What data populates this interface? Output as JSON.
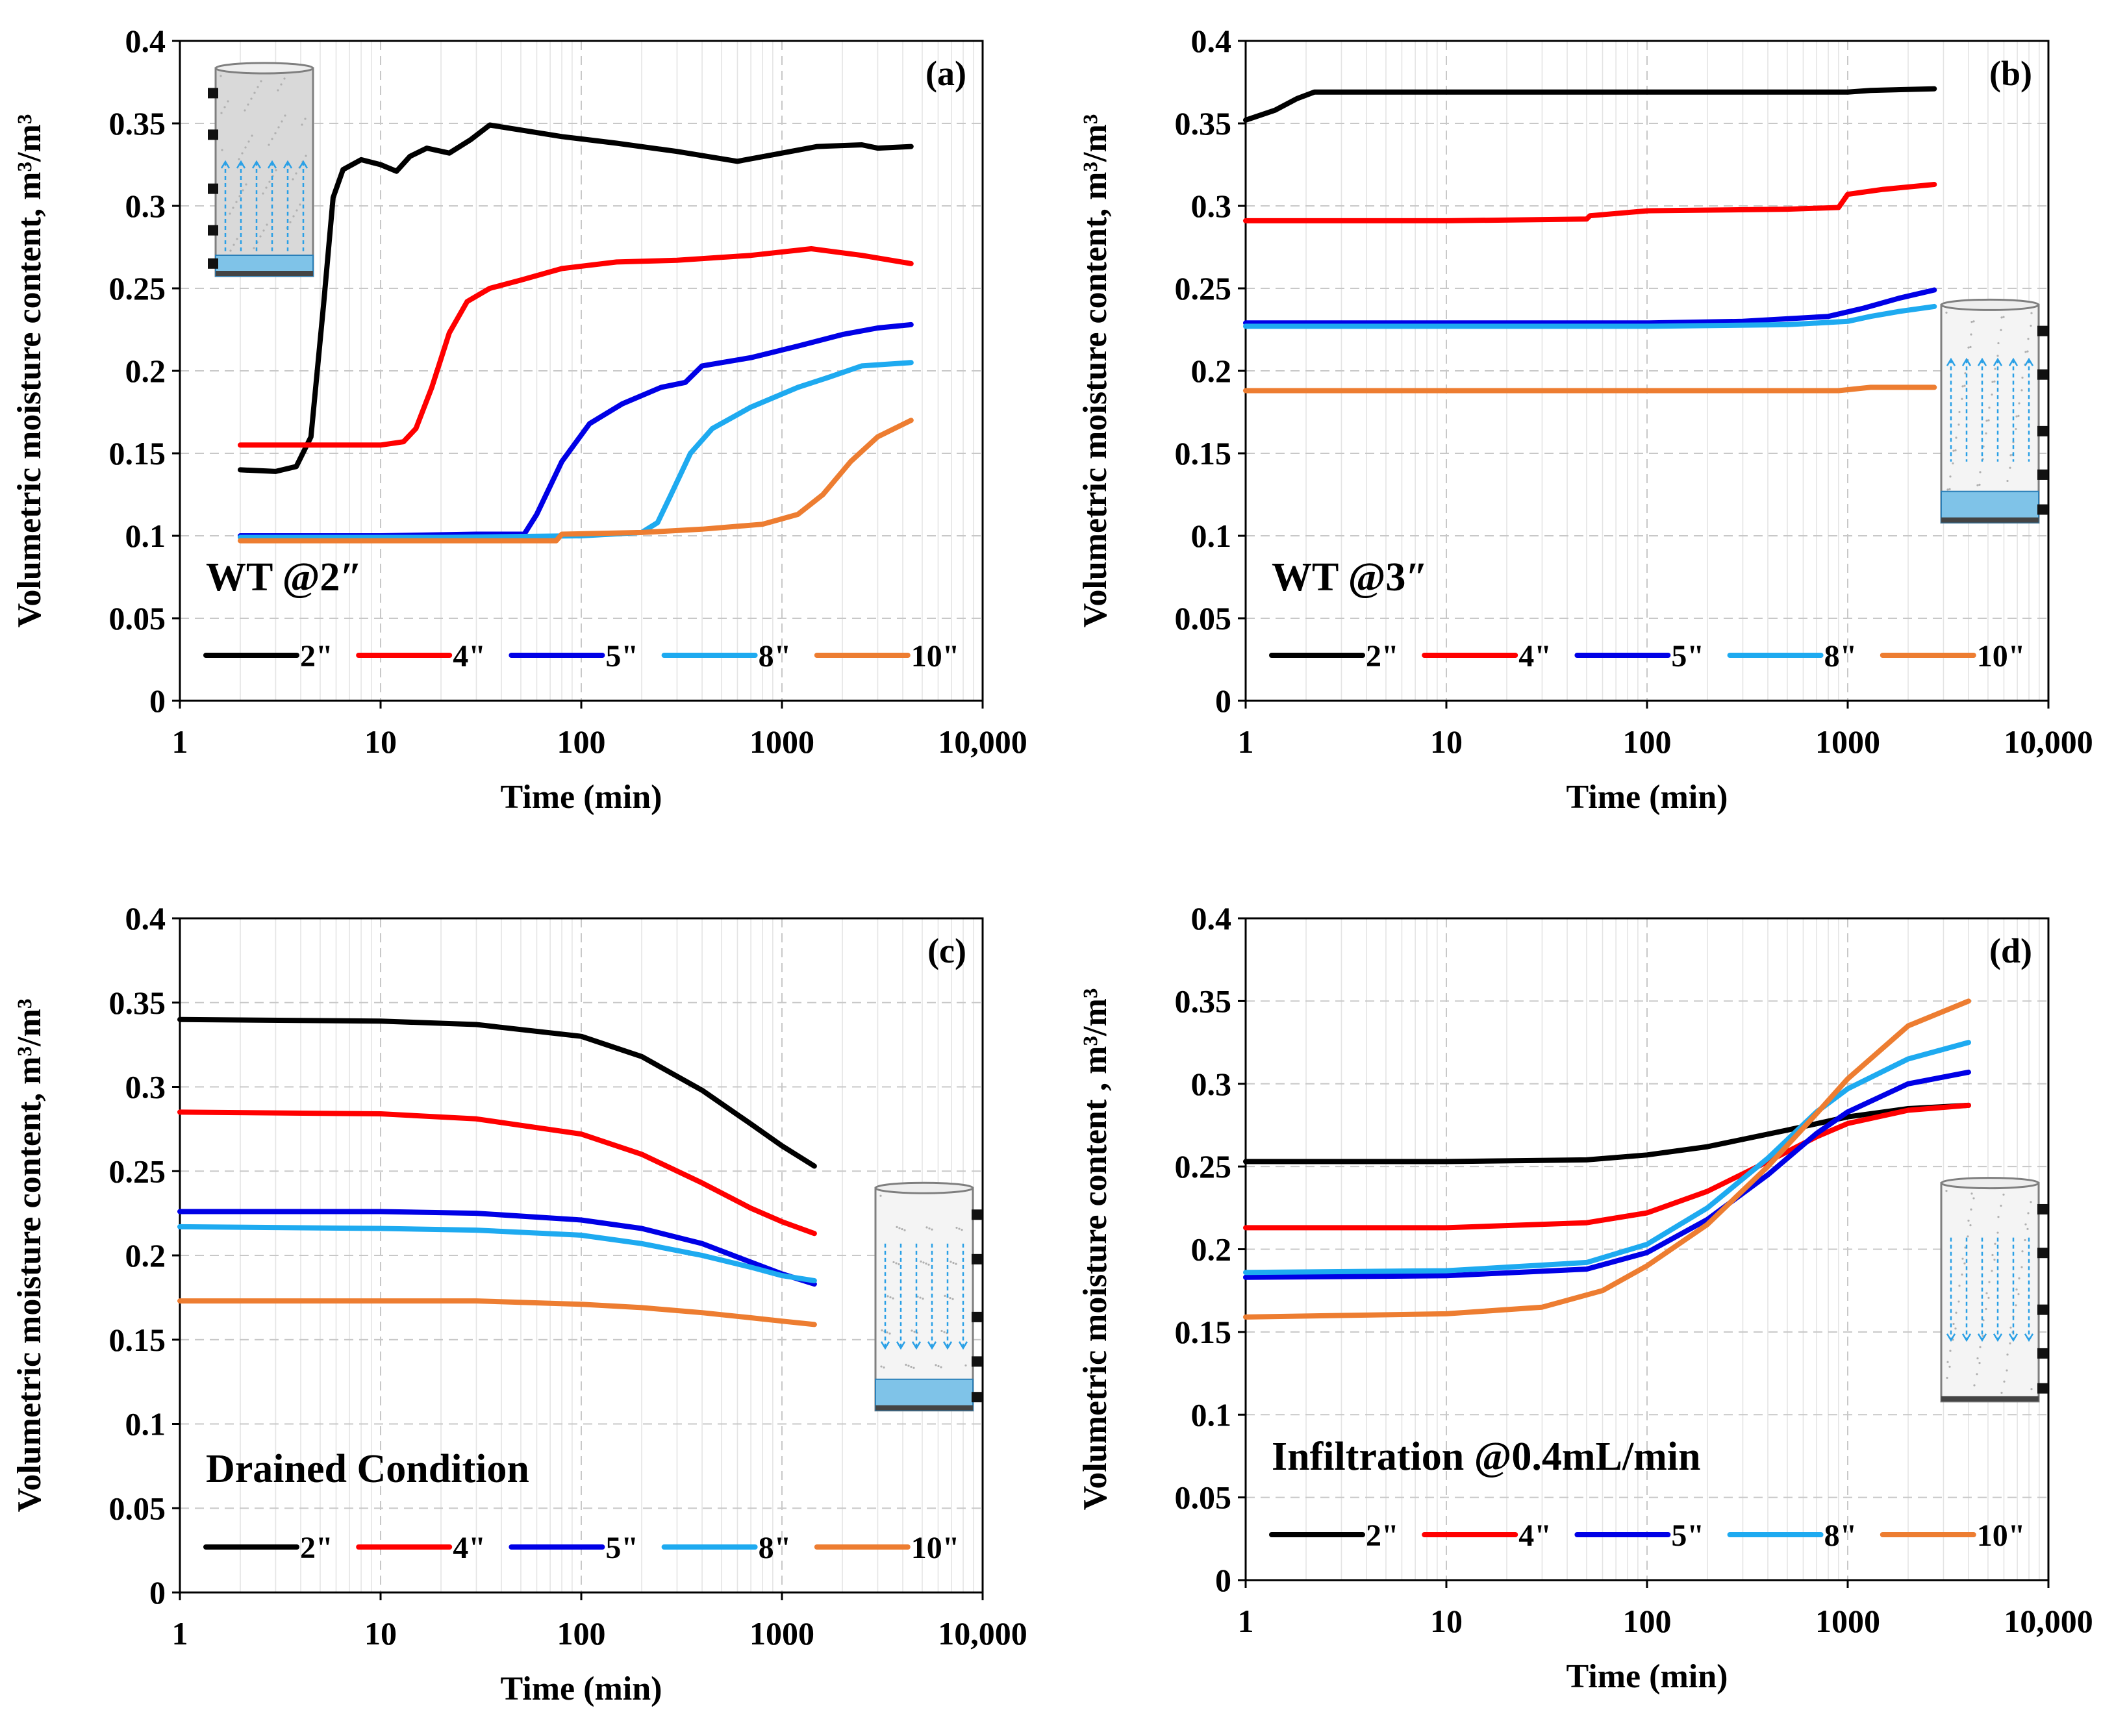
{
  "chart_data": [
    {
      "id": "a",
      "type": "line",
      "panel_label": "a",
      "annotation": "WT @2″",
      "xlabel": "Time (min)",
      "ylabel": "Volumetric moisture content, m³/m³",
      "xscale": "log",
      "xlim": [
        1,
        10000
      ],
      "ylim": [
        0,
        0.4
      ],
      "x_ticks": [
        "1",
        "10",
        "100",
        "1000",
        "10,000"
      ],
      "y_ticks": [
        "0",
        "0.05",
        "0.1",
        "0.15",
        "0.2",
        "0.25",
        "0.3",
        "0.35",
        "0.4"
      ],
      "legend_position": "bottom",
      "inset": "top-left",
      "series": [
        {
          "name": "2\"",
          "color": "#000000",
          "points": [
            [
              2,
              0.14
            ],
            [
              3,
              0.139
            ],
            [
              3.8,
              0.142
            ],
            [
              4.5,
              0.16
            ],
            [
              5.2,
              0.24
            ],
            [
              5.8,
              0.305
            ],
            [
              6.5,
              0.322
            ],
            [
              8,
              0.328
            ],
            [
              10,
              0.325
            ],
            [
              12,
              0.321
            ],
            [
              14,
              0.33
            ],
            [
              17,
              0.335
            ],
            [
              22,
              0.332
            ],
            [
              28,
              0.34
            ],
            [
              35,
              0.349
            ],
            [
              50,
              0.346
            ],
            [
              80,
              0.342
            ],
            [
              150,
              0.338
            ],
            [
              300,
              0.333
            ],
            [
              600,
              0.327
            ],
            [
              900,
              0.331
            ],
            [
              1500,
              0.336
            ],
            [
              2500,
              0.337
            ],
            [
              3000,
              0.335
            ],
            [
              4400,
              0.336
            ]
          ]
        },
        {
          "name": "4\"",
          "color": "#ff0000",
          "points": [
            [
              2,
              0.155
            ],
            [
              5,
              0.155
            ],
            [
              10,
              0.155
            ],
            [
              13,
              0.157
            ],
            [
              15,
              0.165
            ],
            [
              18,
              0.19
            ],
            [
              22,
              0.223
            ],
            [
              27,
              0.242
            ],
            [
              35,
              0.25
            ],
            [
              50,
              0.255
            ],
            [
              80,
              0.262
            ],
            [
              150,
              0.266
            ],
            [
              300,
              0.267
            ],
            [
              700,
              0.27
            ],
            [
              1400,
              0.274
            ],
            [
              2500,
              0.27
            ],
            [
              4400,
              0.265
            ]
          ]
        },
        {
          "name": "5\"",
          "color": "#0000e6",
          "points": [
            [
              2,
              0.1
            ],
            [
              10,
              0.1
            ],
            [
              30,
              0.101
            ],
            [
              52,
              0.101
            ],
            [
              60,
              0.113
            ],
            [
              80,
              0.145
            ],
            [
              110,
              0.168
            ],
            [
              160,
              0.18
            ],
            [
              250,
              0.19
            ],
            [
              330,
              0.193
            ],
            [
              400,
              0.203
            ],
            [
              700,
              0.208
            ],
            [
              1200,
              0.215
            ],
            [
              2000,
              0.222
            ],
            [
              3000,
              0.226
            ],
            [
              4400,
              0.228
            ]
          ]
        },
        {
          "name": "8\"",
          "color": "#1eaaf0",
          "points": [
            [
              2,
              0.099
            ],
            [
              20,
              0.099
            ],
            [
              100,
              0.1
            ],
            [
              200,
              0.102
            ],
            [
              240,
              0.108
            ],
            [
              280,
              0.125
            ],
            [
              350,
              0.15
            ],
            [
              450,
              0.165
            ],
            [
              700,
              0.178
            ],
            [
              1200,
              0.19
            ],
            [
              1700,
              0.196
            ],
            [
              2500,
              0.203
            ],
            [
              4400,
              0.205
            ]
          ]
        },
        {
          "name": "10\"",
          "color": "#ed7d31",
          "points": [
            [
              2,
              0.097
            ],
            [
              20,
              0.097
            ],
            [
              75,
              0.097
            ],
            [
              80,
              0.101
            ],
            [
              200,
              0.102
            ],
            [
              400,
              0.104
            ],
            [
              800,
              0.107
            ],
            [
              1200,
              0.113
            ],
            [
              1600,
              0.125
            ],
            [
              2200,
              0.145
            ],
            [
              3000,
              0.16
            ],
            [
              4400,
              0.17
            ]
          ]
        }
      ]
    },
    {
      "id": "b",
      "type": "line",
      "panel_label": "b",
      "annotation": "WT @3″",
      "xlabel": "Time (min)",
      "ylabel": "Volumetric moisture content, m³/m³",
      "xscale": "log",
      "xlim": [
        1,
        10000
      ],
      "ylim": [
        0,
        0.4
      ],
      "x_ticks": [
        "1",
        "10",
        "100",
        "1000",
        "10,000"
      ],
      "y_ticks": [
        "0",
        "0.05",
        "0.1",
        "0.15",
        "0.2",
        "0.25",
        "0.3",
        "0.35",
        "0.4"
      ],
      "legend_position": "bottom",
      "inset": "right",
      "series": [
        {
          "name": "2\"",
          "color": "#000000",
          "points": [
            [
              1,
              0.352
            ],
            [
              1.4,
              0.358
            ],
            [
              1.8,
              0.365
            ],
            [
              2.2,
              0.369
            ],
            [
              3,
              0.369
            ],
            [
              10,
              0.369
            ],
            [
              100,
              0.369
            ],
            [
              1000,
              0.369
            ],
            [
              1300,
              0.37
            ],
            [
              2700,
              0.371
            ]
          ]
        },
        {
          "name": "4\"",
          "color": "#ff0000",
          "points": [
            [
              1,
              0.291
            ],
            [
              10,
              0.291
            ],
            [
              50,
              0.292
            ],
            [
              52,
              0.294
            ],
            [
              100,
              0.297
            ],
            [
              500,
              0.298
            ],
            [
              900,
              0.299
            ],
            [
              1000,
              0.307
            ],
            [
              1500,
              0.31
            ],
            [
              2700,
              0.313
            ]
          ]
        },
        {
          "name": "5\"",
          "color": "#0000e6",
          "points": [
            [
              1,
              0.229
            ],
            [
              10,
              0.229
            ],
            [
              100,
              0.229
            ],
            [
              300,
              0.23
            ],
            [
              800,
              0.233
            ],
            [
              1200,
              0.238
            ],
            [
              1800,
              0.244
            ],
            [
              2700,
              0.249
            ]
          ]
        },
        {
          "name": "8\"",
          "color": "#1eaaf0",
          "points": [
            [
              1,
              0.227
            ],
            [
              10,
              0.227
            ],
            [
              100,
              0.227
            ],
            [
              500,
              0.228
            ],
            [
              1000,
              0.23
            ],
            [
              1300,
              0.233
            ],
            [
              1800,
              0.236
            ],
            [
              2700,
              0.239
            ]
          ]
        },
        {
          "name": "10\"",
          "color": "#ed7d31",
          "points": [
            [
              1,
              0.188
            ],
            [
              10,
              0.188
            ],
            [
              100,
              0.188
            ],
            [
              900,
              0.188
            ],
            [
              1300,
              0.19
            ],
            [
              2700,
              0.19
            ]
          ]
        }
      ]
    },
    {
      "id": "c",
      "type": "line",
      "panel_label": "c",
      "annotation": "Drained Condition",
      "xlabel": "Time (min)",
      "ylabel": "Volumetric moisture content, m³/m³",
      "xscale": "log",
      "xlim": [
        1,
        10000
      ],
      "ylim": [
        0,
        0.4
      ],
      "x_ticks": [
        "1",
        "10",
        "100",
        "1000",
        "10,000"
      ],
      "y_ticks": [
        "0",
        "0.05",
        "0.1",
        "0.15",
        "0.2",
        "0.25",
        "0.3",
        "0.35",
        "0.4"
      ],
      "legend_position": "bottom",
      "inset": "right",
      "series": [
        {
          "name": "2\"",
          "color": "#000000",
          "points": [
            [
              1,
              0.34
            ],
            [
              10,
              0.339
            ],
            [
              30,
              0.337
            ],
            [
              100,
              0.33
            ],
            [
              200,
              0.318
            ],
            [
              400,
              0.298
            ],
            [
              700,
              0.278
            ],
            [
              1000,
              0.265
            ],
            [
              1450,
              0.253
            ]
          ]
        },
        {
          "name": "4\"",
          "color": "#ff0000",
          "points": [
            [
              1,
              0.285
            ],
            [
              10,
              0.284
            ],
            [
              30,
              0.281
            ],
            [
              100,
              0.272
            ],
            [
              200,
              0.26
            ],
            [
              400,
              0.243
            ],
            [
              700,
              0.228
            ],
            [
              1000,
              0.22
            ],
            [
              1450,
              0.213
            ]
          ]
        },
        {
          "name": "5\"",
          "color": "#0000e6",
          "points": [
            [
              1,
              0.226
            ],
            [
              10,
              0.226
            ],
            [
              30,
              0.225
            ],
            [
              100,
              0.221
            ],
            [
              200,
              0.216
            ],
            [
              400,
              0.207
            ],
            [
              700,
              0.196
            ],
            [
              1000,
              0.189
            ],
            [
              1450,
              0.183
            ]
          ]
        },
        {
          "name": "8\"",
          "color": "#1eaaf0",
          "points": [
            [
              1,
              0.217
            ],
            [
              10,
              0.216
            ],
            [
              30,
              0.215
            ],
            [
              100,
              0.212
            ],
            [
              200,
              0.207
            ],
            [
              400,
              0.2
            ],
            [
              700,
              0.193
            ],
            [
              1000,
              0.188
            ],
            [
              1450,
              0.185
            ]
          ]
        },
        {
          "name": "10\"",
          "color": "#ed7d31",
          "points": [
            [
              1,
              0.173
            ],
            [
              10,
              0.173
            ],
            [
              30,
              0.173
            ],
            [
              100,
              0.171
            ],
            [
              200,
              0.169
            ],
            [
              400,
              0.166
            ],
            [
              700,
              0.163
            ],
            [
              1000,
              0.161
            ],
            [
              1450,
              0.159
            ]
          ]
        }
      ]
    },
    {
      "id": "d",
      "type": "line",
      "panel_label": "d",
      "annotation": "Infiltration @0.4mL/min",
      "xlabel": "Time (min)",
      "ylabel": "Volumetric moisture content , m³/m³",
      "xscale": "log",
      "xlim": [
        1,
        10000
      ],
      "ylim": [
        0,
        0.4
      ],
      "x_ticks": [
        "1",
        "10",
        "100",
        "1000",
        "10,000"
      ],
      "y_ticks": [
        "0",
        "0.05",
        "0.1",
        "0.15",
        "0.2",
        "0.25",
        "0.3",
        "0.35",
        "0.4"
      ],
      "legend_position": "bottom",
      "inset": "right",
      "series": [
        {
          "name": "2\"",
          "color": "#000000",
          "points": [
            [
              1,
              0.253
            ],
            [
              10,
              0.253
            ],
            [
              50,
              0.254
            ],
            [
              100,
              0.257
            ],
            [
              200,
              0.262
            ],
            [
              500,
              0.272
            ],
            [
              1000,
              0.28
            ],
            [
              2000,
              0.285
            ],
            [
              4000,
              0.287
            ]
          ]
        },
        {
          "name": "4\"",
          "color": "#ff0000",
          "points": [
            [
              1,
              0.213
            ],
            [
              10,
              0.213
            ],
            [
              50,
              0.216
            ],
            [
              100,
              0.222
            ],
            [
              200,
              0.235
            ],
            [
              400,
              0.253
            ],
            [
              700,
              0.268
            ],
            [
              1000,
              0.276
            ],
            [
              2000,
              0.284
            ],
            [
              4000,
              0.287
            ]
          ]
        },
        {
          "name": "5\"",
          "color": "#0000e6",
          "points": [
            [
              1,
              0.183
            ],
            [
              10,
              0.184
            ],
            [
              50,
              0.188
            ],
            [
              100,
              0.198
            ],
            [
              200,
              0.218
            ],
            [
              400,
              0.245
            ],
            [
              700,
              0.27
            ],
            [
              1000,
              0.283
            ],
            [
              2000,
              0.3
            ],
            [
              4000,
              0.307
            ]
          ]
        },
        {
          "name": "8\"",
          "color": "#1eaaf0",
          "points": [
            [
              1,
              0.186
            ],
            [
              10,
              0.187
            ],
            [
              50,
              0.192
            ],
            [
              100,
              0.203
            ],
            [
              200,
              0.225
            ],
            [
              400,
              0.255
            ],
            [
              700,
              0.283
            ],
            [
              1000,
              0.297
            ],
            [
              2000,
              0.315
            ],
            [
              4000,
              0.325
            ]
          ]
        },
        {
          "name": "10\"",
          "color": "#ed7d31",
          "points": [
            [
              1,
              0.159
            ],
            [
              10,
              0.161
            ],
            [
              30,
              0.165
            ],
            [
              60,
              0.175
            ],
            [
              100,
              0.19
            ],
            [
              200,
              0.215
            ],
            [
              400,
              0.25
            ],
            [
              700,
              0.282
            ],
            [
              1000,
              0.303
            ],
            [
              2000,
              0.335
            ],
            [
              4000,
              0.35
            ]
          ]
        }
      ]
    }
  ]
}
